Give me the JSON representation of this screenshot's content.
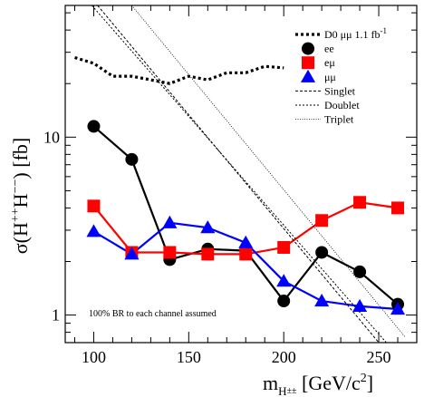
{
  "chart_data": {
    "type": "line",
    "xlabel": "m",
    "xlabel_sub": "H",
    "xlabel_sup": "±±",
    "xlabel_units": "[GeV/c",
    "xlabel_units_sup": "2",
    "xlabel_units_end": "]",
    "ylabel": "σ(H",
    "ylabel_sup": "++",
    "ylabel_mid": "H",
    "ylabel_sup2": "−−",
    "ylabel_end": ") [fb]",
    "xlim": [
      85,
      270
    ],
    "ylim": [
      0.7,
      55
    ],
    "yscale": "log",
    "xticks": [
      100,
      150,
      200,
      250
    ],
    "yticks": [
      {
        "value": 1,
        "label": "1"
      },
      {
        "value": 10,
        "label": "10"
      }
    ],
    "legend_position": "top-right",
    "annotation": "100% BR to each channel assumed",
    "series": [
      {
        "name": "D0 μμ 1.1 fb",
        "name_sup": "-1",
        "style": "thick-dotted",
        "color": "#000000",
        "marker": "none",
        "x": [
          90,
          100,
          110,
          120,
          130,
          140,
          150,
          160,
          170,
          180,
          190,
          200
        ],
        "y": [
          28,
          26,
          22,
          22,
          21,
          20,
          22,
          21,
          23,
          23,
          25,
          24.5
        ]
      },
      {
        "name": "ee",
        "style": "solid",
        "color": "#000000",
        "marker": "circle",
        "x": [
          100,
          120,
          140,
          160,
          180,
          200,
          220,
          240,
          260
        ],
        "y": [
          11.5,
          7.5,
          2.05,
          2.35,
          2.3,
          1.2,
          2.25,
          1.75,
          1.15
        ]
      },
      {
        "name": "eμ",
        "style": "solid",
        "color": "#ff0000",
        "marker": "square",
        "x": [
          100,
          120,
          140,
          160,
          180,
          200,
          220,
          240,
          260
        ],
        "y": [
          4.1,
          2.25,
          2.25,
          2.2,
          2.2,
          2.4,
          3.4,
          4.3,
          4.0
        ]
      },
      {
        "name": "μμ",
        "style": "solid",
        "color": "#0000ff",
        "marker": "triangle",
        "x": [
          100,
          120,
          140,
          160,
          180,
          200,
          220,
          240,
          260
        ],
        "y": [
          2.95,
          2.2,
          3.3,
          3.1,
          2.55,
          1.55,
          1.2,
          1.12,
          1.08
        ]
      },
      {
        "name": "Singlet",
        "style": "dashed",
        "color": "#000000",
        "marker": "none",
        "x": [
          102,
          250
        ],
        "y": [
          55,
          0.7
        ]
      },
      {
        "name": "Doublet",
        "style": "dashed-fine",
        "color": "#000000",
        "marker": "none",
        "x": [
          99,
          254
        ],
        "y": [
          55,
          0.7
        ]
      },
      {
        "name": "Triplet",
        "style": "dotted",
        "color": "#000000",
        "marker": "none",
        "x": [
          120,
          264
        ],
        "y": [
          55,
          0.75
        ]
      }
    ]
  }
}
